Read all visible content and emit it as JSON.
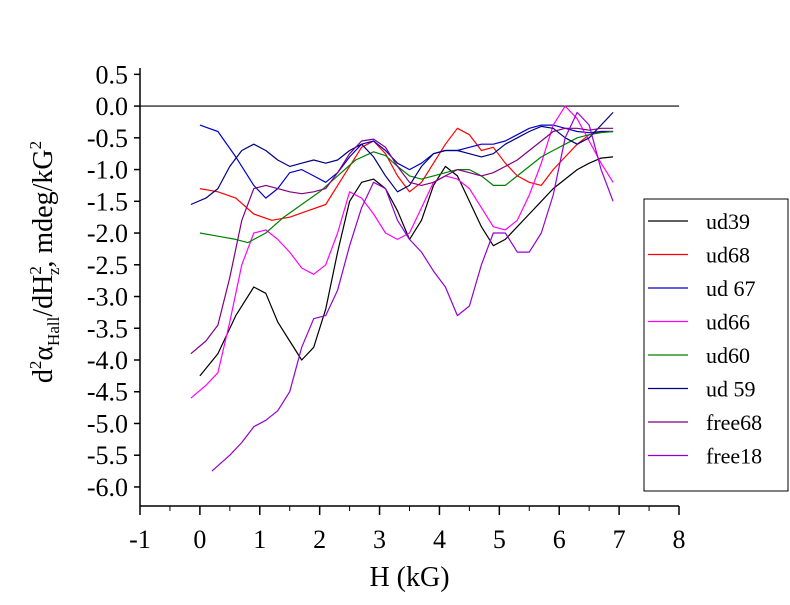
{
  "chart_data": {
    "type": "line",
    "title": "",
    "xlabel": "H (kG)",
    "ylabel_parts": {
      "d1": "d",
      "sup1": "2",
      "alpha": "α",
      "sub_hall": "Hall",
      "slash_dh": "/dH",
      "sup2": "2",
      "sub_z": "z",
      "unit": ", mdeg/kG",
      "sup3": "2"
    },
    "xlim": [
      -1,
      8
    ],
    "ylim": [
      -6.3,
      0.6
    ],
    "x_ticks": [
      "-1",
      "0",
      "1",
      "2",
      "3",
      "4",
      "5",
      "6",
      "7",
      "8"
    ],
    "y_ticks": [
      "0.5",
      "0.0",
      "-0.5",
      "-1.0",
      "-1.5",
      "-2.0",
      "-2.5",
      "-3.0",
      "-3.5",
      "-4.0",
      "-4.5",
      "-5.0",
      "-5.5",
      "-6.0"
    ],
    "reference_line_y": 0.0,
    "legend_position": "right",
    "series": [
      {
        "name": "ud39",
        "color": "#000000",
        "x": [
          0.0,
          0.3,
          0.6,
          0.9,
          1.1,
          1.3,
          1.5,
          1.7,
          1.9,
          2.1,
          2.3,
          2.5,
          2.7,
          2.9,
          3.1,
          3.3,
          3.5,
          3.7,
          3.9,
          4.1,
          4.3,
          4.5,
          4.7,
          4.9,
          5.1,
          5.3,
          5.5,
          5.7,
          5.9,
          6.1,
          6.3,
          6.5,
          6.7,
          6.9
        ],
        "y": [
          -4.25,
          -3.9,
          -3.3,
          -2.85,
          -2.95,
          -3.4,
          -3.7,
          -4.0,
          -3.8,
          -3.2,
          -2.3,
          -1.5,
          -1.2,
          -1.15,
          -1.3,
          -1.65,
          -2.1,
          -1.8,
          -1.25,
          -0.95,
          -1.1,
          -1.5,
          -1.9,
          -2.2,
          -2.1,
          -1.9,
          -1.7,
          -1.5,
          -1.3,
          -1.15,
          -1.0,
          -0.9,
          -0.82,
          -0.8
        ]
      },
      {
        "name": "ud68",
        "color": "#ff0000",
        "x": [
          0.0,
          0.3,
          0.6,
          0.9,
          1.2,
          1.5,
          1.8,
          2.1,
          2.4,
          2.7,
          2.9,
          3.1,
          3.3,
          3.5,
          3.7,
          3.9,
          4.1,
          4.3,
          4.5,
          4.7,
          4.9,
          5.1,
          5.3,
          5.5,
          5.7,
          5.9,
          6.1,
          6.3,
          6.5,
          6.7,
          6.9
        ],
        "y": [
          -1.3,
          -1.35,
          -1.45,
          -1.7,
          -1.8,
          -1.75,
          -1.65,
          -1.55,
          -1.1,
          -0.65,
          -0.55,
          -0.75,
          -1.1,
          -1.35,
          -1.2,
          -0.9,
          -0.6,
          -0.35,
          -0.45,
          -0.7,
          -0.65,
          -0.9,
          -1.1,
          -1.2,
          -1.25,
          -1.0,
          -0.8,
          -0.6,
          -0.45,
          -0.4,
          -0.4
        ]
      },
      {
        "name": "ud 67",
        "color": "#0000cc",
        "x": [
          0.0,
          0.3,
          0.6,
          0.9,
          1.1,
          1.3,
          1.5,
          1.7,
          1.9,
          2.1,
          2.3,
          2.5,
          2.7,
          2.9,
          3.1,
          3.3,
          3.5,
          3.7,
          3.9,
          4.1,
          4.3,
          4.5,
          4.7,
          4.9,
          5.1,
          5.3,
          5.5,
          5.7,
          5.9,
          6.1,
          6.3,
          6.5,
          6.7,
          6.9
        ],
        "y": [
          -0.3,
          -0.4,
          -0.8,
          -1.25,
          -1.45,
          -1.3,
          -1.05,
          -1.0,
          -1.1,
          -1.2,
          -1.05,
          -0.8,
          -0.6,
          -0.55,
          -0.7,
          -0.9,
          -1.0,
          -0.9,
          -0.75,
          -0.7,
          -0.7,
          -0.65,
          -0.6,
          -0.6,
          -0.55,
          -0.45,
          -0.35,
          -0.3,
          -0.3,
          -0.35,
          -0.4,
          -0.42,
          -0.4,
          -0.4
        ]
      },
      {
        "name": "ud66",
        "color": "#ff00ff",
        "x": [
          -0.15,
          0.1,
          0.3,
          0.5,
          0.7,
          0.9,
          1.1,
          1.3,
          1.5,
          1.7,
          1.9,
          2.1,
          2.3,
          2.5,
          2.7,
          2.9,
          3.1,
          3.3,
          3.5,
          3.7,
          3.9,
          4.1,
          4.3,
          4.5,
          4.7,
          4.9,
          5.1,
          5.3,
          5.5,
          5.7,
          5.9,
          6.1,
          6.3,
          6.5,
          6.7,
          6.9
        ],
        "y": [
          -4.6,
          -4.4,
          -4.2,
          -3.4,
          -2.5,
          -2.0,
          -1.95,
          -2.1,
          -2.3,
          -2.55,
          -2.65,
          -2.5,
          -2.0,
          -1.35,
          -1.45,
          -1.7,
          -2.0,
          -2.1,
          -2.0,
          -1.6,
          -1.2,
          -1.1,
          -1.15,
          -1.3,
          -1.6,
          -1.9,
          -1.95,
          -1.8,
          -1.4,
          -0.9,
          -0.3,
          0.0,
          -0.2,
          -0.55,
          -0.9,
          -1.2
        ]
      },
      {
        "name": "ud60",
        "color": "#008000",
        "x": [
          0.0,
          0.3,
          0.6,
          0.8,
          1.1,
          1.4,
          1.7,
          2.0,
          2.3,
          2.6,
          2.9,
          3.1,
          3.3,
          3.5,
          3.7,
          3.9,
          4.1,
          4.3,
          4.5,
          4.7,
          4.9,
          5.1,
          5.3,
          5.5,
          5.7,
          5.9,
          6.1,
          6.3,
          6.5,
          6.7,
          6.9
        ],
        "y": [
          -2.0,
          -2.05,
          -2.1,
          -2.15,
          -2.0,
          -1.75,
          -1.55,
          -1.35,
          -1.1,
          -0.85,
          -0.72,
          -0.78,
          -0.95,
          -1.1,
          -1.15,
          -1.1,
          -1.05,
          -1.0,
          -1.0,
          -1.1,
          -1.25,
          -1.25,
          -1.1,
          -0.95,
          -0.8,
          -0.7,
          -0.6,
          -0.5,
          -0.45,
          -0.42,
          -0.4
        ]
      },
      {
        "name": "ud 59",
        "color": "#000080",
        "x": [
          -0.15,
          0.1,
          0.3,
          0.5,
          0.7,
          0.9,
          1.1,
          1.3,
          1.5,
          1.7,
          1.9,
          2.1,
          2.3,
          2.5,
          2.7,
          2.9,
          3.1,
          3.3,
          3.5,
          3.7,
          3.9,
          4.1,
          4.3,
          4.5,
          4.7,
          4.9,
          5.1,
          5.3,
          5.5,
          5.7,
          5.9,
          6.1,
          6.3,
          6.5,
          6.7,
          6.9
        ],
        "y": [
          -1.55,
          -1.45,
          -1.3,
          -0.95,
          -0.7,
          -0.6,
          -0.7,
          -0.85,
          -0.95,
          -0.9,
          -0.85,
          -0.9,
          -0.85,
          -0.7,
          -0.6,
          -0.8,
          -1.1,
          -1.35,
          -1.25,
          -0.95,
          -0.75,
          -0.7,
          -0.7,
          -0.75,
          -0.8,
          -0.75,
          -0.6,
          -0.5,
          -0.4,
          -0.32,
          -0.35,
          -0.5,
          -0.6,
          -0.5,
          -0.3,
          -0.1
        ]
      },
      {
        "name": "free68",
        "color": "#800080",
        "x": [
          -0.15,
          0.1,
          0.3,
          0.5,
          0.7,
          0.9,
          1.1,
          1.3,
          1.5,
          1.7,
          1.9,
          2.1,
          2.3,
          2.5,
          2.7,
          2.9,
          3.1,
          3.3,
          3.5,
          3.7,
          3.9,
          4.1,
          4.3,
          4.5,
          4.7,
          4.9,
          5.1,
          5.3,
          5.5,
          5.7,
          5.9,
          6.1,
          6.3,
          6.5,
          6.7,
          6.9
        ],
        "y": [
          -3.9,
          -3.7,
          -3.45,
          -2.7,
          -1.8,
          -1.3,
          -1.25,
          -1.3,
          -1.35,
          -1.38,
          -1.35,
          -1.3,
          -1.05,
          -0.75,
          -0.55,
          -0.52,
          -0.65,
          -0.95,
          -1.2,
          -1.25,
          -1.2,
          -1.1,
          -1.0,
          -1.05,
          -1.1,
          -1.05,
          -0.95,
          -0.85,
          -0.7,
          -0.55,
          -0.4,
          -0.35,
          -0.35,
          -0.38,
          -0.35,
          -0.35
        ]
      },
      {
        "name": "free18",
        "color": "#9400d3",
        "x": [
          0.2,
          0.5,
          0.7,
          0.9,
          1.1,
          1.3,
          1.5,
          1.7,
          1.9,
          2.1,
          2.3,
          2.5,
          2.7,
          2.9,
          3.1,
          3.3,
          3.5,
          3.7,
          3.9,
          4.1,
          4.3,
          4.5,
          4.7,
          4.9,
          5.1,
          5.3,
          5.5,
          5.7,
          5.9,
          6.1,
          6.3,
          6.5,
          6.7,
          6.9
        ],
        "y": [
          -5.75,
          -5.5,
          -5.3,
          -5.05,
          -4.95,
          -4.8,
          -4.5,
          -3.8,
          -3.35,
          -3.3,
          -2.9,
          -2.2,
          -1.6,
          -1.2,
          -1.3,
          -1.8,
          -2.1,
          -2.3,
          -2.6,
          -2.85,
          -3.3,
          -3.15,
          -2.5,
          -2.0,
          -2.0,
          -2.3,
          -2.3,
          -2.0,
          -1.4,
          -0.5,
          -0.1,
          -0.3,
          -1.0,
          -1.5
        ]
      }
    ]
  }
}
